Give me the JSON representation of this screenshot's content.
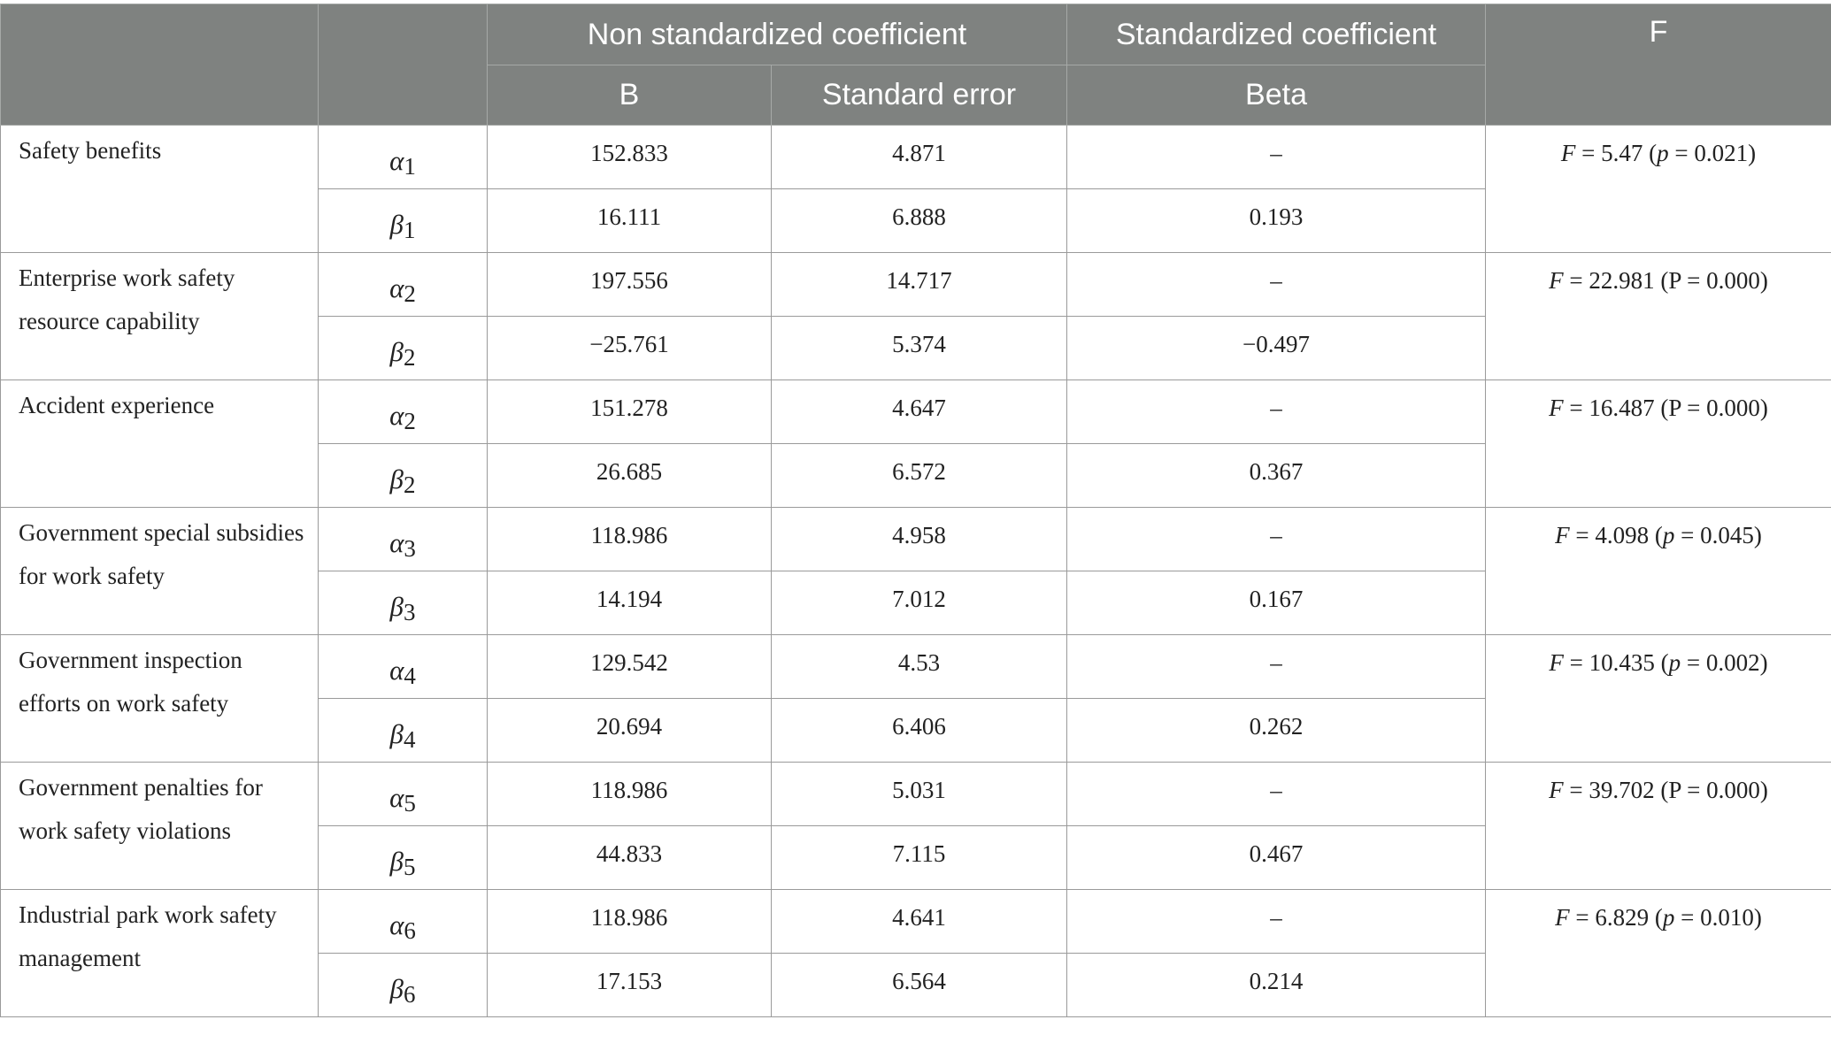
{
  "header": {
    "group_nonstd": "Non standardized coefficient",
    "group_std": "Standardized coefficient",
    "col_f": "F",
    "col_b": "B",
    "col_se": "Standard error",
    "col_beta": "Beta"
  },
  "rows": [
    {
      "label": "Safety benefits",
      "a_sym": "α",
      "a_sub": "1",
      "a_b": "152.833",
      "a_se": "4.871",
      "a_beta": "–",
      "b_sym": "β",
      "b_sub": "1",
      "b_b": "16.111",
      "b_se": "6.888",
      "b_beta": "0.193",
      "f_lhs": "F",
      "f_value": " = 5.47 (",
      "p_sym": "p",
      "p_value": " = 0.021)"
    },
    {
      "label": "Enterprise work safety resource capability",
      "a_sym": "α",
      "a_sub": "2",
      "a_b": "197.556",
      "a_se": "14.717",
      "a_beta": "–",
      "b_sym": "β",
      "b_sub": "2",
      "b_b": "−25.761",
      "b_se": "5.374",
      "b_beta": "−0.497",
      "f_lhs": "F",
      "f_value": " = 22.981 (",
      "p_sym": "P",
      "p_value": " = 0.000)"
    },
    {
      "label": "Accident experience",
      "a_sym": "α",
      "a_sub": "2",
      "a_b": "151.278",
      "a_se": "4.647",
      "a_beta": "–",
      "b_sym": "β",
      "b_sub": "2",
      "b_b": "26.685",
      "b_se": "6.572",
      "b_beta": "0.367",
      "f_lhs": "F",
      "f_value": " = 16.487 (",
      "p_sym": "P",
      "p_value": " = 0.000)"
    },
    {
      "label": "Government special subsidies for work safety",
      "a_sym": "α",
      "a_sub": "3",
      "a_b": "118.986",
      "a_se": "4.958",
      "a_beta": "–",
      "b_sym": "β",
      "b_sub": "3",
      "b_b": "14.194",
      "b_se": "7.012",
      "b_beta": "0.167",
      "f_lhs": "F",
      "f_value": " = 4.098 (",
      "p_sym": "p",
      "p_value": " = 0.045)"
    },
    {
      "label": "Government inspection efforts on work safety",
      "a_sym": "α",
      "a_sub": "4",
      "a_b": "129.542",
      "a_se": "4.53",
      "a_beta": "–",
      "b_sym": "β",
      "b_sub": "4",
      "b_b": "20.694",
      "b_se": "6.406",
      "b_beta": "0.262",
      "f_lhs": "F",
      "f_value": " = 10.435 (",
      "p_sym": "p",
      "p_value": " = 0.002)"
    },
    {
      "label": "Government penalties for work safety violations",
      "a_sym": "α",
      "a_sub": "5",
      "a_b": "118.986",
      "a_se": "5.031",
      "a_beta": "–",
      "b_sym": "β",
      "b_sub": "5",
      "b_b": "44.833",
      "b_se": "7.115",
      "b_beta": "0.467",
      "f_lhs": "F",
      "f_value": " = 39.702 (",
      "p_sym": "P",
      "p_value": " = 0.000)"
    },
    {
      "label": "Industrial park work safety management",
      "a_sym": "α",
      "a_sub": "6",
      "a_b": "118.986",
      "a_se": "4.641",
      "a_beta": "–",
      "b_sym": "β",
      "b_sub": "6",
      "b_b": "17.153",
      "b_se": "6.564",
      "b_beta": "0.214",
      "f_lhs": "F",
      "f_value": " = 6.829 (",
      "p_sym": "p",
      "p_value": " = 0.010)"
    }
  ]
}
